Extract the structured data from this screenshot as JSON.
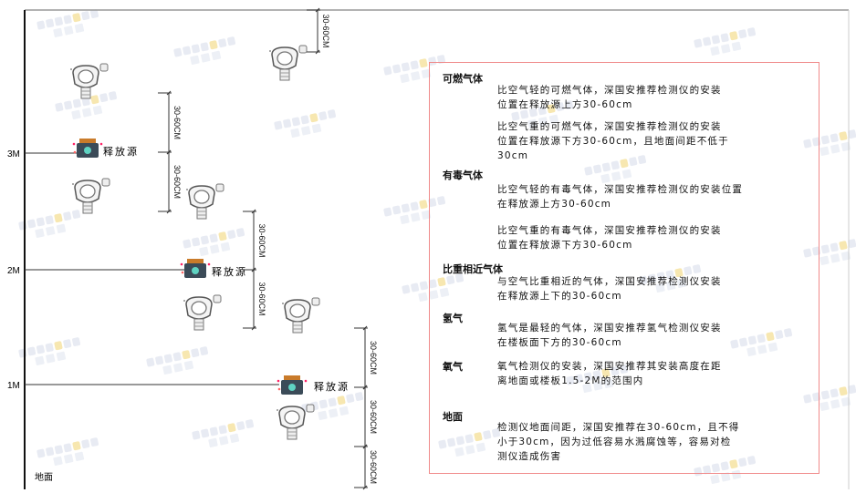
{
  "watermark": {
    "brand": "SINGOAN",
    "brand_cn": "深国安"
  },
  "diagram": {
    "levels": [
      {
        "label": "3M"
      },
      {
        "label": "2M"
      },
      {
        "label": "1M"
      }
    ],
    "source_label": "释放源",
    "ground_label": "地面",
    "dimension_label": "30-60CM"
  },
  "panel": {
    "sections": [
      {
        "title": "可燃气体",
        "paragraphs": [
          "比空气轻的可燃气体，深国安推荐检测仪的安装\n位置在释放源上方30-60cm",
          "比空气重的可燃气体，深国安推荐检测仪的安装\n位置在释放源下方30-60cm，且地面间距不低于\n30cm"
        ]
      },
      {
        "title": "有毒气体",
        "paragraphs": [
          "比空气轻的有毒气体，深国安推荐检测仪的安装位置\n在释放源上方30-60cm",
          "比空气重的有毒气体，深国安推荐检测仪的安装\n位置在释放源下方30-60cm"
        ]
      },
      {
        "title": "比重相近气体",
        "paragraphs": [
          "与空气比重相近的气体，深国安推荐检测仪安装\n在释放源上下的30-60cm"
        ]
      },
      {
        "title": "氢气",
        "paragraphs": [
          "氢气是最轻的气体，深国安推荐氢气检测仪安装\n在楼板面下方的30-60cm"
        ]
      },
      {
        "title": "氧气",
        "paragraphs": [
          "氧气检测仪的安装，深国安推荐其安装高度在距\n离地面或楼板1.5-2M的范围内"
        ]
      },
      {
        "title": "地面",
        "paragraphs": [
          "检测仪地面间距，深国安推荐在30-60cm，且不得\n小于30cm，因为过低容易水溅腐蚀等，容易对检\n测仪造成伤害"
        ]
      }
    ]
  }
}
